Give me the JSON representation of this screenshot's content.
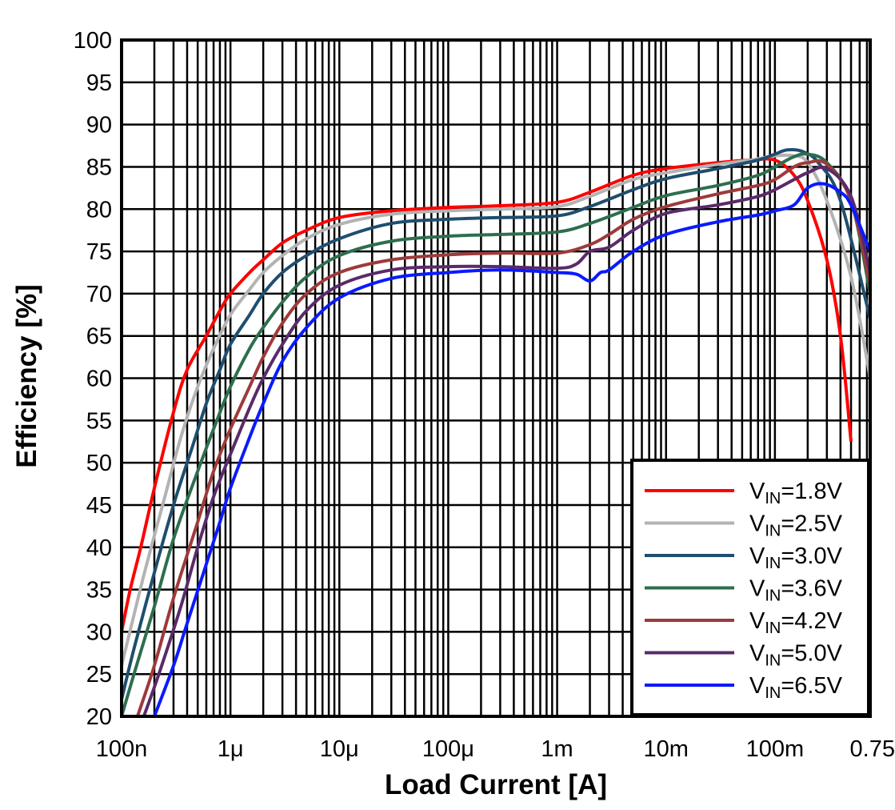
{
  "chart_data": {
    "type": "line",
    "title": "",
    "xlabel": "Load Current [A]",
    "ylabel": "Efficiency [%]",
    "xscale": "log",
    "xlim": [
      1e-07,
      0.75
    ],
    "ylim": [
      20,
      100
    ],
    "grid": true,
    "legend_position": "bottom-right",
    "x_tick_labels": [
      {
        "value": 1e-07,
        "label": "100n"
      },
      {
        "value": 1e-06,
        "label": "1μ"
      },
      {
        "value": 1e-05,
        "label": "10μ"
      },
      {
        "value": 0.0001,
        "label": "100μ"
      },
      {
        "value": 0.001,
        "label": "1m"
      },
      {
        "value": 0.01,
        "label": "10m"
      },
      {
        "value": 0.1,
        "label": "100m"
      },
      {
        "value": 0.75,
        "label": "0.75"
      }
    ],
    "y_tick_labels": [
      "20",
      "25",
      "30",
      "35",
      "40",
      "45",
      "50",
      "55",
      "60",
      "65",
      "70",
      "75",
      "80",
      "85",
      "90",
      "95",
      "100"
    ],
    "series": [
      {
        "name": "VIN=1.8V",
        "legend_main": "V",
        "legend_sub": "IN",
        "legend_val": "=1.8V",
        "color": "#ff0000",
        "points": [
          [
            1e-07,
            30
          ],
          [
            1.2e-07,
            35
          ],
          [
            1.5e-07,
            40
          ],
          [
            2e-07,
            47
          ],
          [
            3e-07,
            56
          ],
          [
            4e-07,
            61
          ],
          [
            6e-07,
            65
          ],
          [
            8e-07,
            68
          ],
          [
            1e-06,
            70
          ],
          [
            1.5e-06,
            72.5
          ],
          [
            2e-06,
            74
          ],
          [
            3e-06,
            76
          ],
          [
            5e-06,
            77.5
          ],
          [
            1e-05,
            79
          ],
          [
            3e-05,
            79.8
          ],
          [
            0.0001,
            80.2
          ],
          [
            0.0003,
            80.4
          ],
          [
            0.001,
            80.8
          ],
          [
            0.002,
            82
          ],
          [
            0.005,
            84
          ],
          [
            0.01,
            84.8
          ],
          [
            0.03,
            85.5
          ],
          [
            0.06,
            85.8
          ],
          [
            0.1,
            85.8
          ],
          [
            0.15,
            84
          ],
          [
            0.2,
            81
          ],
          [
            0.3,
            74
          ],
          [
            0.4,
            65
          ],
          [
            0.5,
            52.5
          ]
        ]
      },
      {
        "name": "VIN=2.5V",
        "legend_main": "V",
        "legend_sub": "IN",
        "legend_val": "=2.5V",
        "color": "#b3b3b3",
        "points": [
          [
            1e-07,
            26
          ],
          [
            1.3e-07,
            32
          ],
          [
            1.7e-07,
            38
          ],
          [
            2.5e-07,
            46
          ],
          [
            3.5e-07,
            53
          ],
          [
            5e-07,
            59
          ],
          [
            7e-07,
            63.5
          ],
          [
            1e-06,
            67.5
          ],
          [
            1.5e-06,
            70.5
          ],
          [
            2e-06,
            72.5
          ],
          [
            3e-06,
            74.5
          ],
          [
            5e-06,
            76.5
          ],
          [
            1e-05,
            78.2
          ],
          [
            3e-05,
            79.4
          ],
          [
            0.0001,
            79.8
          ],
          [
            0.0003,
            80
          ],
          [
            0.001,
            80.3
          ],
          [
            0.002,
            81.5
          ],
          [
            0.005,
            83.5
          ],
          [
            0.01,
            84.3
          ],
          [
            0.03,
            85.3
          ],
          [
            0.06,
            85.8
          ],
          [
            0.1,
            86.3
          ],
          [
            0.15,
            86.3
          ],
          [
            0.2,
            85.5
          ],
          [
            0.3,
            81
          ],
          [
            0.5,
            72
          ],
          [
            0.75,
            60
          ]
        ]
      },
      {
        "name": "VIN=3.0V",
        "legend_main": "V",
        "legend_sub": "IN",
        "legend_val": "=3.0V",
        "color": "#1f4e6e",
        "points": [
          [
            1e-07,
            22
          ],
          [
            1.3e-07,
            28
          ],
          [
            2e-07,
            37
          ],
          [
            3e-07,
            45
          ],
          [
            4.5e-07,
            52
          ],
          [
            6e-07,
            57
          ],
          [
            8e-07,
            61
          ],
          [
            1e-06,
            64
          ],
          [
            1.5e-06,
            67.5
          ],
          [
            2e-06,
            70
          ],
          [
            3e-06,
            72.5
          ],
          [
            5e-06,
            74.5
          ],
          [
            1e-05,
            76.5
          ],
          [
            3e-05,
            78.3
          ],
          [
            0.0001,
            78.8
          ],
          [
            0.0003,
            79
          ],
          [
            0.001,
            79.2
          ],
          [
            0.002,
            80.3
          ],
          [
            0.005,
            82.3
          ],
          [
            0.01,
            83.6
          ],
          [
            0.03,
            84.8
          ],
          [
            0.07,
            85.8
          ],
          [
            0.1,
            86.5
          ],
          [
            0.13,
            87
          ],
          [
            0.18,
            86.8
          ],
          [
            0.25,
            85.5
          ],
          [
            0.4,
            81
          ],
          [
            0.75,
            67
          ]
        ]
      },
      {
        "name": "VIN=3.6V",
        "legend_main": "V",
        "legend_sub": "IN",
        "legend_val": "=3.6V",
        "color": "#2d6e4e",
        "points": [
          [
            1e-07,
            20
          ],
          [
            1.3e-07,
            25
          ],
          [
            2e-07,
            33
          ],
          [
            3e-07,
            41
          ],
          [
            5e-07,
            49
          ],
          [
            7e-07,
            54
          ],
          [
            1e-06,
            59
          ],
          [
            1.5e-06,
            63.5
          ],
          [
            2e-06,
            66
          ],
          [
            3e-06,
            69
          ],
          [
            5e-06,
            72
          ],
          [
            1e-05,
            74.5
          ],
          [
            3e-05,
            76.2
          ],
          [
            0.0001,
            76.8
          ],
          [
            0.0003,
            77
          ],
          [
            0.001,
            77.3
          ],
          [
            0.002,
            78.3
          ],
          [
            0.005,
            80.2
          ],
          [
            0.01,
            81.6
          ],
          [
            0.03,
            82.8
          ],
          [
            0.07,
            84
          ],
          [
            0.1,
            85
          ],
          [
            0.15,
            86.2
          ],
          [
            0.2,
            86.5
          ],
          [
            0.3,
            85.5
          ],
          [
            0.5,
            81
          ],
          [
            0.75,
            70
          ]
        ]
      },
      {
        "name": "VIN=4.2V",
        "legend_main": "V",
        "legend_sub": "IN",
        "legend_val": "=4.2V",
        "color": "#9e3a3a",
        "points": [
          [
            1.4e-07,
            20
          ],
          [
            2e-07,
            26
          ],
          [
            3e-07,
            34
          ],
          [
            5e-07,
            43
          ],
          [
            7e-07,
            49
          ],
          [
            1e-06,
            54
          ],
          [
            1.5e-06,
            59
          ],
          [
            2e-06,
            62.5
          ],
          [
            3e-06,
            66.5
          ],
          [
            5e-06,
            70
          ],
          [
            1e-05,
            72.5
          ],
          [
            3e-05,
            74
          ],
          [
            0.0001,
            74.6
          ],
          [
            0.0003,
            74.8
          ],
          [
            0.001,
            74.8
          ],
          [
            0.002,
            75.8
          ],
          [
            0.003,
            77
          ],
          [
            0.005,
            78.8
          ],
          [
            0.01,
            80.3
          ],
          [
            0.03,
            81.8
          ],
          [
            0.07,
            82.8
          ],
          [
            0.1,
            83.5
          ],
          [
            0.15,
            85
          ],
          [
            0.2,
            85.5
          ],
          [
            0.3,
            85.3
          ],
          [
            0.5,
            81
          ],
          [
            0.75,
            71
          ]
        ]
      },
      {
        "name": "VIN=5.0V",
        "legend_main": "V",
        "legend_sub": "IN",
        "legend_val": "=5.0V",
        "color": "#5a2a6a",
        "points": [
          [
            1.6e-07,
            20
          ],
          [
            2.2e-07,
            25
          ],
          [
            3.5e-07,
            33
          ],
          [
            5e-07,
            40
          ],
          [
            7e-07,
            46
          ],
          [
            1e-06,
            51
          ],
          [
            1.5e-06,
            56.5
          ],
          [
            2e-06,
            60
          ],
          [
            3e-06,
            64
          ],
          [
            5e-06,
            68
          ],
          [
            1e-05,
            71
          ],
          [
            3e-05,
            72.8
          ],
          [
            0.0001,
            73.2
          ],
          [
            0.0003,
            73.2
          ],
          [
            0.001,
            73
          ],
          [
            0.0015,
            73.5
          ],
          [
            0.002,
            75
          ],
          [
            0.003,
            75.5
          ],
          [
            0.005,
            77.5
          ],
          [
            0.01,
            79.5
          ],
          [
            0.03,
            80.5
          ],
          [
            0.07,
            81.5
          ],
          [
            0.1,
            82.3
          ],
          [
            0.15,
            83.5
          ],
          [
            0.2,
            84.3
          ],
          [
            0.3,
            84.8
          ],
          [
            0.5,
            81.5
          ],
          [
            0.75,
            72.5
          ]
        ]
      },
      {
        "name": "VIN=6.5V",
        "legend_main": "V",
        "legend_sub": "IN",
        "legend_val": "=6.5V",
        "color": "#0a1aff",
        "points": [
          [
            2e-07,
            20
          ],
          [
            3e-07,
            26
          ],
          [
            4e-07,
            31
          ],
          [
            6e-07,
            38
          ],
          [
            8e-07,
            43
          ],
          [
            1e-06,
            47
          ],
          [
            1.5e-06,
            53
          ],
          [
            2e-06,
            57
          ],
          [
            3e-06,
            62
          ],
          [
            5e-06,
            66
          ],
          [
            1e-05,
            69.5
          ],
          [
            3e-05,
            71.8
          ],
          [
            0.0001,
            72.5
          ],
          [
            0.0003,
            72.8
          ],
          [
            0.001,
            72.5
          ],
          [
            0.0015,
            72.3
          ],
          [
            0.002,
            71.5
          ],
          [
            0.0025,
            72.5
          ],
          [
            0.003,
            72.8
          ],
          [
            0.005,
            75
          ],
          [
            0.01,
            77
          ],
          [
            0.03,
            78.5
          ],
          [
            0.07,
            79.3
          ],
          [
            0.1,
            79.8
          ],
          [
            0.15,
            80.5
          ],
          [
            0.2,
            82.5
          ],
          [
            0.28,
            83
          ],
          [
            0.4,
            82
          ],
          [
            0.5,
            80.5
          ],
          [
            0.75,
            75
          ]
        ]
      }
    ]
  }
}
